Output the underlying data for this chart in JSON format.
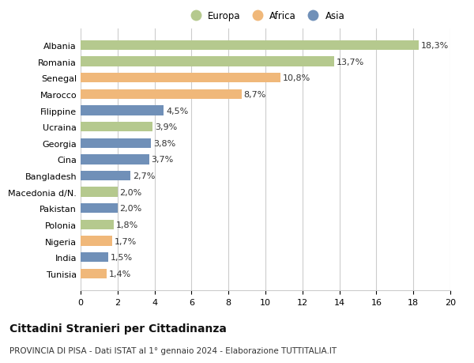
{
  "categories": [
    "Tunisia",
    "India",
    "Nigeria",
    "Polonia",
    "Pakistan",
    "Macedonia d/N.",
    "Bangladesh",
    "Cina",
    "Georgia",
    "Ucraina",
    "Filippine",
    "Marocco",
    "Senegal",
    "Romania",
    "Albania"
  ],
  "values": [
    1.4,
    1.5,
    1.7,
    1.8,
    2.0,
    2.0,
    2.7,
    3.7,
    3.8,
    3.9,
    4.5,
    8.7,
    10.8,
    13.7,
    18.3
  ],
  "labels": [
    "1,4%",
    "1,5%",
    "1,7%",
    "1,8%",
    "2,0%",
    "2,0%",
    "2,7%",
    "3,7%",
    "3,8%",
    "3,9%",
    "4,5%",
    "8,7%",
    "10,8%",
    "13,7%",
    "18,3%"
  ],
  "continents": [
    "Africa",
    "Asia",
    "Africa",
    "Europa",
    "Asia",
    "Europa",
    "Asia",
    "Asia",
    "Asia",
    "Europa",
    "Asia",
    "Africa",
    "Africa",
    "Europa",
    "Europa"
  ],
  "colors": {
    "Europa": "#b5c98e",
    "Africa": "#f0b87a",
    "Asia": "#7090b8"
  },
  "legend_labels": [
    "Europa",
    "Africa",
    "Asia"
  ],
  "legend_colors": [
    "#b5c98e",
    "#f0b87a",
    "#7090b8"
  ],
  "title": "Cittadini Stranieri per Cittadinanza",
  "subtitle": "PROVINCIA DI PISA - Dati ISTAT al 1° gennaio 2024 - Elaborazione TUTTITALIA.IT",
  "xlim": [
    0,
    20
  ],
  "xticks": [
    0,
    2,
    4,
    6,
    8,
    10,
    12,
    14,
    16,
    18,
    20
  ],
  "background_color": "#ffffff",
  "grid_color": "#cccccc",
  "bar_height": 0.6,
  "label_fontsize": 8,
  "tick_fontsize": 8,
  "title_fontsize": 10,
  "subtitle_fontsize": 7.5
}
